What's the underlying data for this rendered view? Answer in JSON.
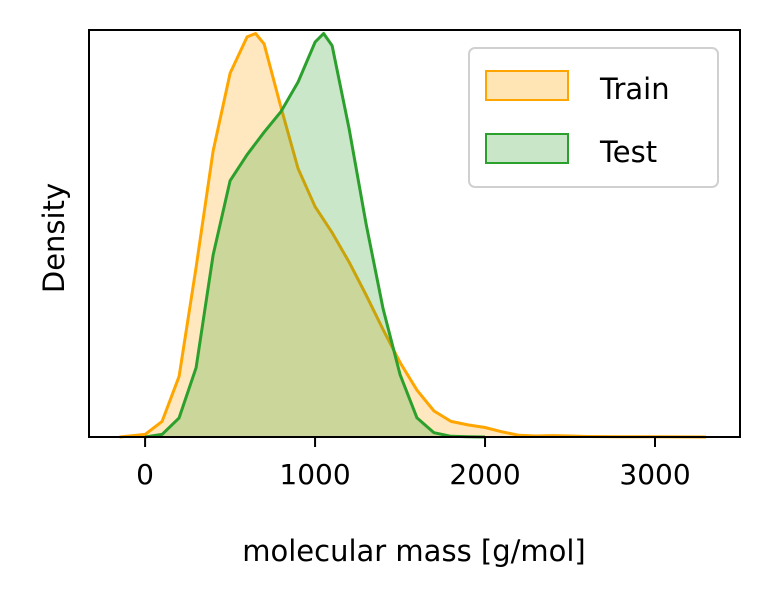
{
  "chart_data": {
    "type": "area",
    "title": "",
    "xlabel": "molecular mass [g/mol]",
    "ylabel": "Density",
    "xlim": [
      -330,
      3500
    ],
    "ylim": [
      0,
      0.00235
    ],
    "xticks": [
      0,
      1000,
      2000,
      3000
    ],
    "xtick_labels": [
      "0",
      "1000",
      "2000",
      "3000"
    ],
    "yticks_shown": false,
    "grid": false,
    "legend_position": "top-right",
    "series": [
      {
        "name": "Train",
        "color": "#ffa500",
        "fill_color": "#ffe5b4",
        "x": [
          -150,
          0,
          100,
          200,
          300,
          400,
          500,
          600,
          650,
          700,
          800,
          900,
          1000,
          1100,
          1200,
          1300,
          1400,
          1500,
          1600,
          1700,
          1800,
          1900,
          2000,
          2100,
          2200,
          2300,
          2400,
          2500,
          2600,
          2800,
          3000,
          3300
        ],
        "y": [
          0.0,
          1.5e-05,
          9e-05,
          0.00035,
          0.00098,
          0.00165,
          0.0021,
          0.00231,
          0.00233,
          0.00227,
          0.0019,
          0.00155,
          0.00133,
          0.00118,
          0.00101,
          0.00082,
          0.00062,
          0.00043,
          0.00027,
          0.00015,
          9e-05,
          7e-05,
          5.5e-05,
          3e-05,
          1e-05,
          6e-06,
          8e-06,
          6e-06,
          3e-06,
          1e-06,
          1e-06,
          0.0
        ]
      },
      {
        "name": "Test",
        "color": "#2ca02c",
        "fill_color": "#c9e6c9",
        "x": [
          0,
          100,
          200,
          300,
          400,
          500,
          600,
          700,
          800,
          900,
          1000,
          1050,
          1100,
          1200,
          1300,
          1400,
          1500,
          1600,
          1700,
          1800,
          1900,
          2000
        ],
        "y": [
          0.0,
          1.5e-05,
          0.00011,
          0.0004,
          0.00105,
          0.00148,
          0.00163,
          0.00176,
          0.00188,
          0.00205,
          0.00228,
          0.00233,
          0.00226,
          0.00178,
          0.00123,
          0.00074,
          0.00036,
          0.00011,
          2.5e-05,
          4e-06,
          1e-06,
          0.0
        ]
      }
    ]
  }
}
